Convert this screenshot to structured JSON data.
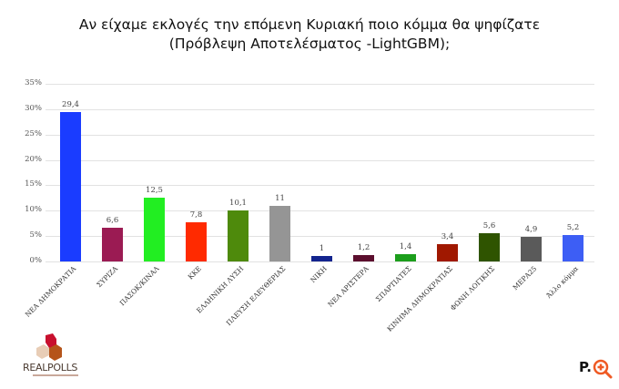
{
  "title_line1": "Αν είχαμε εκλογές την επόμενη Κυριακή ποιο κόμμα θα ψηφίζατε",
  "title_line2": "(Πρόβλεψη Αποτελέσματος -LightGBM);",
  "y_ticks": [
    "35%",
    "30%",
    "25%",
    "20%",
    "15%",
    "10%",
    "5%",
    "0%"
  ],
  "logos": {
    "left": "REALPOLLS",
    "right": "P."
  },
  "chart_data": {
    "type": "bar",
    "title": "Αν είχαμε εκλογές την επόμενη Κυριακή ποιο κόμμα θα ψηφίζατε (Πρόβλεψη Αποτελέσματος -LightGBM);",
    "xlabel": "",
    "ylabel": "",
    "ylim": [
      0,
      35
    ],
    "y_tick_labels": [
      "0%",
      "5%",
      "10%",
      "15%",
      "20%",
      "25%",
      "30%",
      "35%"
    ],
    "grid": true,
    "legend": "none",
    "categories": [
      "ΝΕΑ ΔΗΜΟΚΡΑΤΙΑ",
      "ΣΥΡΙΖΑ",
      "ΠΑΣΟΚ/ΚΙΝΑΛ",
      "ΚΚΕ",
      "ΕΛΛΗΝΙΚΗ ΛΥΣΗ",
      "ΠΛΕΥΣΗ ΕΛΕΥΘΕΡΙΑΣ",
      "ΝΙΚΗ",
      "ΝΕΑ ΑΡΙΣΤΕΡΑ",
      "ΣΠΑΡΤΙΑΤΕΣ",
      "ΚΙΝΗΜΑ ΔΗΜΟΚΡΑΤΙΑΣ",
      "ΦΩΝΗ ΛΟΓΙΚΗΣ",
      "ΜΕΡΑ25",
      "Άλλο κόμμα"
    ],
    "values": [
      29.4,
      6.6,
      12.5,
      7.8,
      10.1,
      11,
      1,
      1.2,
      1.4,
      3.4,
      5.6,
      4.9,
      5.2
    ],
    "value_labels": [
      "29,4",
      "6,6",
      "12,5",
      "7,8",
      "10,1",
      "11",
      "1",
      "1,2",
      "1,4",
      "3,4",
      "5,6",
      "4,9",
      "5,2"
    ],
    "colors": [
      "#1a3cff",
      "#9b1b53",
      "#22ee22",
      "#ff2a00",
      "#4e8a0c",
      "#959595",
      "#13248e",
      "#5c0f2e",
      "#1c9e1c",
      "#a01800",
      "#2f5400",
      "#5a5a5a",
      "#3d5ef5"
    ]
  }
}
